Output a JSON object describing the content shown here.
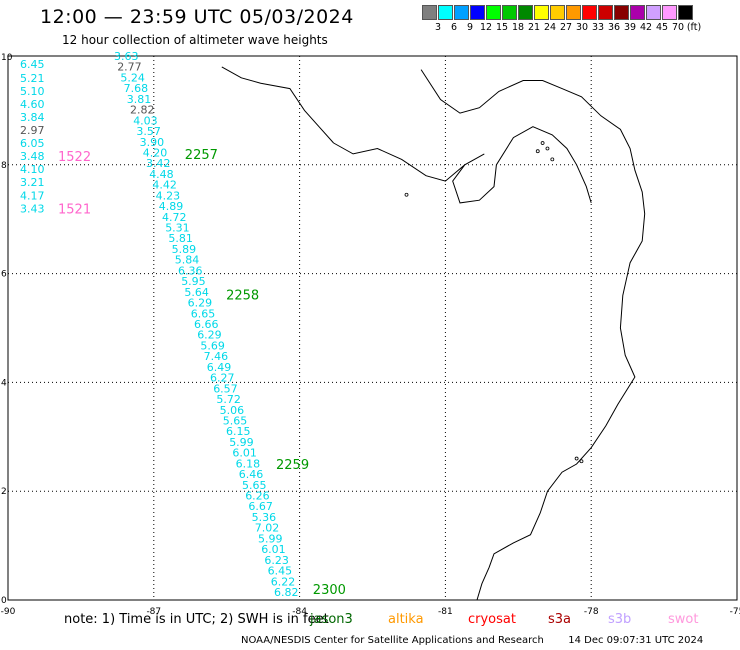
{
  "header": {
    "title": "12:00 — 23:59 UTC 05/03/2024",
    "subtitle": "12 hour collection of altimeter wave heights"
  },
  "legend": {
    "colors": [
      "#7f7f7f",
      "#00ffff",
      "#00a0ff",
      "#0000ff",
      "#00ff00",
      "#00c800",
      "#008800",
      "#ffff00",
      "#ffcc00",
      "#ff9900",
      "#ff0000",
      "#cc0000",
      "#880000",
      "#aa00aa",
      "#d0a0ff",
      "#ff99ff",
      "#000000"
    ],
    "labels": [
      "3",
      "6",
      "9",
      "12",
      "15",
      "18",
      "21",
      "24",
      "27",
      "30",
      "33",
      "36",
      "39",
      "42",
      "45",
      "70",
      "(ft)"
    ]
  },
  "map": {
    "lon_range": [
      -90,
      -75
    ],
    "lat_range": [
      0,
      10
    ],
    "lon_ticks": [
      "-90",
      "-87",
      "-84",
      "-81",
      "-78",
      "-75"
    ],
    "lat_ticks": [
      "10",
      "8",
      "6",
      "4",
      "2",
      "0"
    ],
    "left_track": {
      "color_default": "#00d8e8",
      "color_dark": "#555555",
      "points": [
        {
          "value": "6.45",
          "lat": 9.85
        },
        {
          "value": "5.21",
          "lat": 9.6
        },
        {
          "value": "5.10",
          "lat": 9.36
        },
        {
          "value": "4.60",
          "lat": 9.12
        },
        {
          "value": "3.84",
          "lat": 8.88
        },
        {
          "value": "2.97",
          "lat": 8.64,
          "dark": true
        },
        {
          "value": "6.05",
          "lat": 8.4
        },
        {
          "value": "3.48",
          "lat": 8.16
        },
        {
          "value": "4.10",
          "lat": 7.92
        },
        {
          "value": "3.21",
          "lat": 7.68
        },
        {
          "value": "4.17",
          "lat": 7.44
        },
        {
          "value": "3.43",
          "lat": 7.2
        }
      ],
      "time_labels": [
        {
          "text": "1522",
          "lat": 8.16,
          "color": "#ff66cc"
        },
        {
          "text": "1521",
          "lat": 7.2,
          "color": "#ff66cc"
        }
      ]
    },
    "diag_track": {
      "color_default": "#00d8e8",
      "color_dark": "#555555",
      "values": [
        "3.63",
        "2.77",
        "5.24",
        "7.68",
        "3.81",
        "2.82",
        "4.03",
        "3.57",
        "3.90",
        "4.20",
        "3.42",
        "4.48",
        "4.42",
        "4.23",
        "4.89",
        "4.72",
        "5.31",
        "5.81",
        "5.89",
        "5.84",
        "6.36",
        "5.95",
        "5.64",
        "6.29",
        "6.65",
        "6.66",
        "6.29",
        "5.69",
        "7.46",
        "6.49",
        "6.27",
        "6.57",
        "5.72",
        "5.06",
        "5.65",
        "6.15",
        "5.99",
        "6.01",
        "6.18",
        "6.46",
        "5.65",
        "6.26",
        "6.67",
        "5.36",
        "7.02",
        "5.99",
        "6.01",
        "6.23",
        "6.45",
        "6.22",
        "6.82"
      ],
      "dark_values": [
        "2.77",
        "2.82"
      ],
      "time_labels": [
        {
          "text": "2257",
          "lat": 8.2,
          "color": "#009900"
        },
        {
          "text": "2258",
          "lat": 5.62,
          "color": "#009900"
        },
        {
          "text": "2259",
          "lat": 2.5,
          "color": "#009900"
        },
        {
          "text": "2300",
          "lat": 0.2,
          "color": "#009900"
        }
      ]
    }
  },
  "footer": {
    "note": "note: 1) Time is in UTC; 2) SWH is in feet",
    "satellites": [
      {
        "name": "jason3",
        "color": "#006600"
      },
      {
        "name": "altika",
        "color": "#ff9900"
      },
      {
        "name": "cryosat",
        "color": "#ff0000"
      },
      {
        "name": "s3a",
        "color": "#aa0000"
      },
      {
        "name": "s3b",
        "color": "#c0a0ff"
      },
      {
        "name": "swot",
        "color": "#ff99dd"
      }
    ],
    "credit": "NOAA/NESDIS Center for Satellite Applications and Research",
    "timestamp": "14 Dec 09:07:31 UTC 2024"
  }
}
